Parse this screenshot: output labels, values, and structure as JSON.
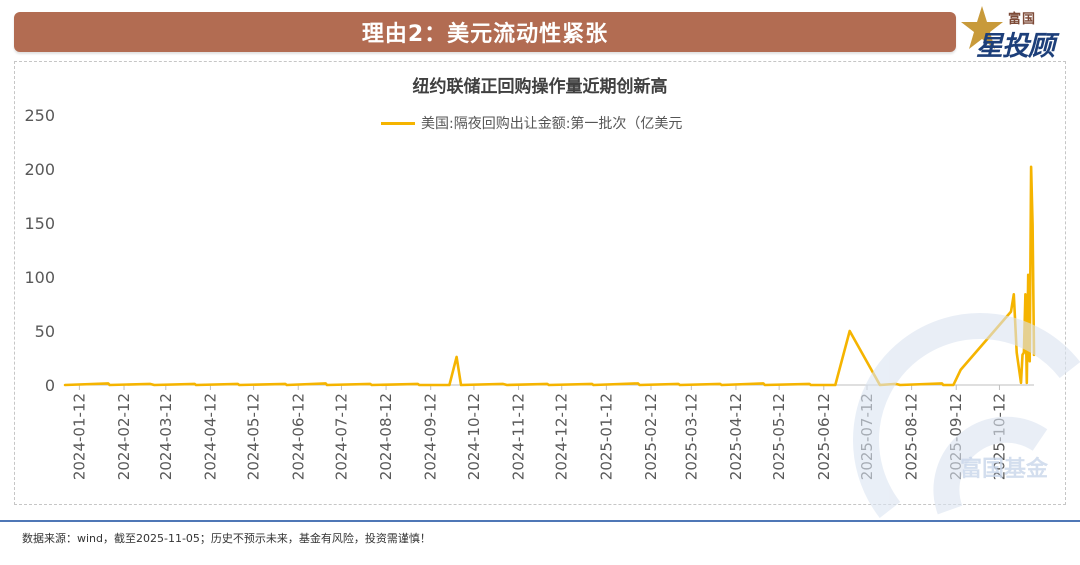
{
  "header": {
    "title": "理由2：美元流动性紧张",
    "logo_top": "富国",
    "logo_bottom": "星投顾"
  },
  "footer": {
    "source": "数据来源：wind，截至2025-11-05；历史不预示未来，基金有风险，投资需谨慎！"
  },
  "watermark": {
    "text": "富国基金"
  },
  "colors": {
    "banner": "#b26c52",
    "series": "#f5b400",
    "axis_text": "#595959",
    "footer_rule": "#4f77b6",
    "logo_blue": "#1d3f7a",
    "logo_brown": "#7d4a37"
  },
  "chart_data": {
    "type": "line",
    "title": "纽约联储正回购操作量近期创新高",
    "xlabel": "",
    "ylabel": "",
    "grid": false,
    "legend_position": "top-center",
    "ylim": [
      0,
      250
    ],
    "yticks": [
      0,
      50,
      100,
      150,
      200,
      250
    ],
    "x_range": [
      "2024-01-02",
      "2025-11-05"
    ],
    "x_ticks": [
      "2024-01-12",
      "2024-02-12",
      "2024-03-12",
      "2024-04-12",
      "2024-05-12",
      "2024-06-12",
      "2024-07-12",
      "2024-08-12",
      "2024-09-12",
      "2024-10-12",
      "2024-11-12",
      "2024-12-12",
      "2025-01-12",
      "2025-02-12",
      "2025-03-12",
      "2025-04-12",
      "2025-05-12",
      "2025-06-12",
      "2025-07-12",
      "2025-08-12",
      "2025-09-12",
      "2025-10-12"
    ],
    "baseline_value": 0,
    "series": [
      {
        "name": "美国:隔夜回购出让金额:第一批次（亿美元",
        "color": "#f5b400",
        "points": [
          [
            "2024-01-02",
            0
          ],
          [
            "2024-02-01",
            1.5
          ],
          [
            "2024-02-02",
            0
          ],
          [
            "2024-03-01",
            1
          ],
          [
            "2024-03-04",
            0
          ],
          [
            "2024-04-01",
            1
          ],
          [
            "2024-04-02",
            0
          ],
          [
            "2024-05-01",
            1
          ],
          [
            "2024-05-02",
            0
          ],
          [
            "2024-06-03",
            1
          ],
          [
            "2024-06-04",
            0
          ],
          [
            "2024-07-01",
            1.5
          ],
          [
            "2024-07-02",
            0
          ],
          [
            "2024-08-01",
            1
          ],
          [
            "2024-08-02",
            0
          ],
          [
            "2024-09-03",
            1
          ],
          [
            "2024-09-04",
            0
          ],
          [
            "2024-09-25",
            0
          ],
          [
            "2024-09-30",
            26
          ],
          [
            "2024-10-03",
            0
          ],
          [
            "2024-11-01",
            1
          ],
          [
            "2024-11-04",
            0
          ],
          [
            "2024-12-02",
            1
          ],
          [
            "2024-12-03",
            0
          ],
          [
            "2025-01-02",
            1
          ],
          [
            "2025-01-03",
            0
          ],
          [
            "2025-02-03",
            1.5
          ],
          [
            "2025-02-04",
            0
          ],
          [
            "2025-03-03",
            1
          ],
          [
            "2025-03-04",
            0
          ],
          [
            "2025-04-01",
            1
          ],
          [
            "2025-04-02",
            0
          ],
          [
            "2025-05-01",
            1.5
          ],
          [
            "2025-05-02",
            0
          ],
          [
            "2025-06-02",
            1
          ],
          [
            "2025-06-03",
            0
          ],
          [
            "2025-06-20",
            0
          ],
          [
            "2025-06-30",
            50
          ],
          [
            "2025-07-21",
            0
          ],
          [
            "2025-08-01",
            1
          ],
          [
            "2025-08-04",
            0
          ],
          [
            "2025-09-02",
            1.5
          ],
          [
            "2025-09-03",
            0
          ],
          [
            "2025-09-10",
            0
          ],
          [
            "2025-09-15",
            14
          ],
          [
            "2025-10-20",
            68
          ],
          [
            "2025-10-22",
            84
          ],
          [
            "2025-10-24",
            30
          ],
          [
            "2025-10-27",
            2
          ],
          [
            "2025-10-28",
            28
          ],
          [
            "2025-10-29",
            30
          ],
          [
            "2025-10-30",
            84
          ],
          [
            "2025-10-31",
            2
          ],
          [
            "2025-11-01",
            102
          ],
          [
            "2025-11-02",
            22
          ],
          [
            "2025-11-03",
            202
          ],
          [
            "2025-11-04",
            148
          ],
          [
            "2025-11-05",
            28
          ]
        ]
      }
    ]
  }
}
